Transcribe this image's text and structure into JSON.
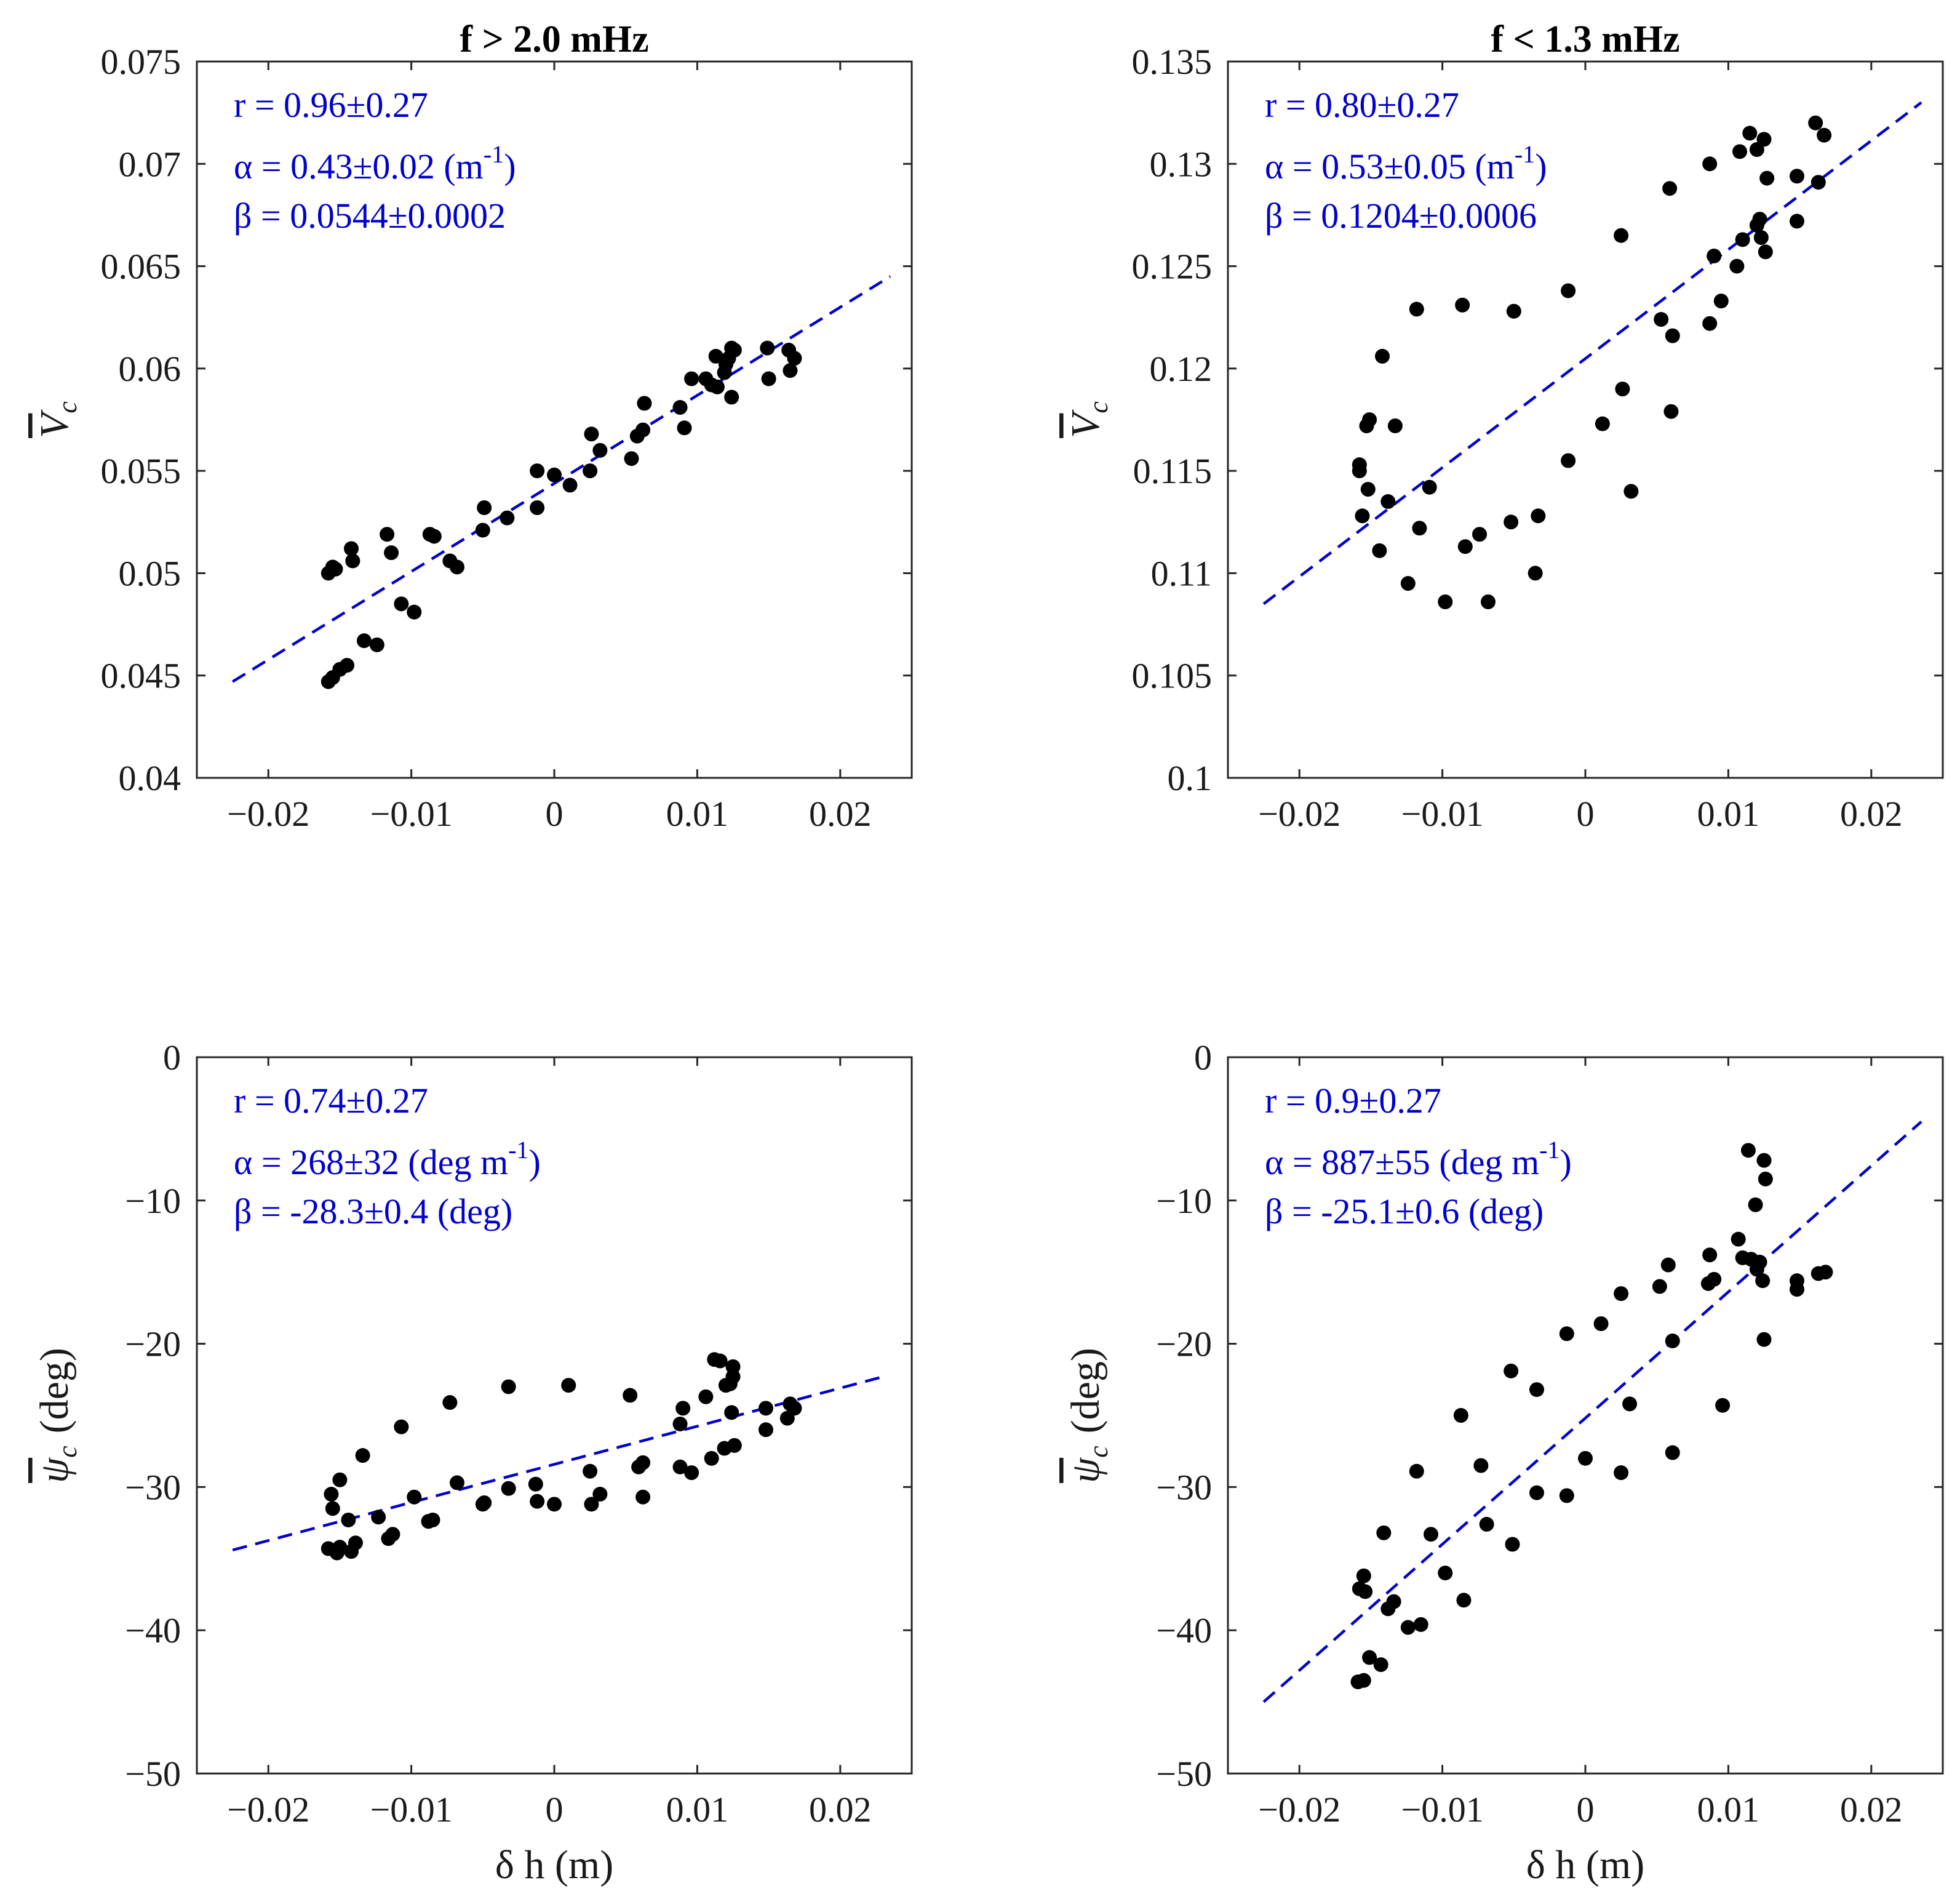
{
  "colors": {
    "points": "#000000",
    "fit": "#0000cd",
    "annotation": "#0000cd",
    "axes": "#262626"
  },
  "chart_data": [
    {
      "type": "scatter",
      "title": "f > 2.0 mHz",
      "xlabel": "",
      "ylabel_symbol": "V",
      "ylabel_sub": "c",
      "xlim": [
        -0.025,
        0.025
      ],
      "ylim": [
        0.04,
        0.075
      ],
      "xticks": [
        -0.02,
        -0.01,
        0,
        0.01,
        0.02
      ],
      "xtick_labels": [
        "−0.02",
        "−0.01",
        "0",
        "0.01",
        "0.02"
      ],
      "yticks": [
        0.04,
        0.045,
        0.05,
        0.055,
        0.06,
        0.065,
        0.07,
        0.075
      ],
      "ytick_labels": [
        "0.04",
        "0.045",
        "0.05",
        "0.055",
        "0.06",
        "0.065",
        "0.07",
        "0.075"
      ],
      "annotations": {
        "r": "r = 0.96±0.27",
        "alpha": "α = 0.43±0.02 (m",
        "alpha_sup": "-1",
        "alpha_end": ")",
        "beta": "β = 0.0544±0.0002"
      },
      "fit": {
        "x": [
          -0.0225,
          0.0235
        ],
        "y": [
          0.0447,
          0.0645
        ]
      },
      "points": [
        [
          -0.0158,
          0.0447
        ],
        [
          -0.0155,
          0.0449
        ],
        [
          -0.015,
          0.0453
        ],
        [
          -0.0145,
          0.0455
        ],
        [
          -0.0158,
          0.05
        ],
        [
          -0.0155,
          0.0503
        ],
        [
          -0.0153,
          0.0502
        ],
        [
          -0.0141,
          0.0506
        ],
        [
          -0.0142,
          0.0512
        ],
        [
          -0.0133,
          0.0467
        ],
        [
          -0.0124,
          0.0465
        ],
        [
          -0.0117,
          0.0519
        ],
        [
          -0.0114,
          0.051
        ],
        [
          -0.0107,
          0.0485
        ],
        [
          -0.0098,
          0.0481
        ],
        [
          -0.0087,
          0.0519
        ],
        [
          -0.0084,
          0.0518
        ],
        [
          -0.0073,
          0.0506
        ],
        [
          -0.0068,
          0.0503
        ],
        [
          -0.005,
          0.0521
        ],
        [
          -0.0049,
          0.0532
        ],
        [
          -0.0033,
          0.0527
        ],
        [
          -0.0012,
          0.0532
        ],
        [
          -0.0012,
          0.055
        ],
        [
          0.0,
          0.0548
        ],
        [
          0.0011,
          0.0543
        ],
        [
          0.0025,
          0.055
        ],
        [
          0.0026,
          0.0568
        ],
        [
          0.0032,
          0.056
        ],
        [
          0.0054,
          0.0556
        ],
        [
          0.0058,
          0.0567
        ],
        [
          0.0062,
          0.057
        ],
        [
          0.0063,
          0.0583
        ],
        [
          0.0088,
          0.0581
        ],
        [
          0.0091,
          0.0571
        ],
        [
          0.0096,
          0.0595
        ],
        [
          0.0106,
          0.0595
        ],
        [
          0.011,
          0.0592
        ],
        [
          0.0113,
          0.0606
        ],
        [
          0.0114,
          0.0591
        ],
        [
          0.0119,
          0.0598
        ],
        [
          0.012,
          0.0602
        ],
        [
          0.0122,
          0.0605
        ],
        [
          0.0124,
          0.061
        ],
        [
          0.0124,
          0.0586
        ],
        [
          0.0126,
          0.0609
        ],
        [
          0.0149,
          0.061
        ],
        [
          0.015,
          0.0595
        ],
        [
          0.0164,
          0.0609
        ],
        [
          0.0165,
          0.0599
        ],
        [
          0.0168,
          0.0605
        ]
      ]
    },
    {
      "type": "scatter",
      "title": "f < 1.3 mHz",
      "xlabel": "",
      "ylabel_symbol": "V",
      "ylabel_sub": "c",
      "xlim": [
        -0.025,
        0.025
      ],
      "ylim": [
        0.1,
        0.135
      ],
      "xticks": [
        -0.02,
        -0.01,
        0,
        0.01,
        0.02
      ],
      "xtick_labels": [
        "−0.02",
        "−0.01",
        "0",
        "0.01",
        "0.02"
      ],
      "yticks": [
        0.1,
        0.105,
        0.11,
        0.115,
        0.12,
        0.125,
        0.13,
        0.135
      ],
      "ytick_labels": [
        "0.1",
        "0.105",
        "0.11",
        "0.115",
        "0.12",
        "0.125",
        "0.13",
        "0.135"
      ],
      "annotations": {
        "r": "r = 0.80±0.27",
        "alpha": "α = 0.53±0.05 (m",
        "alpha_sup": "-1",
        "alpha_end": ")",
        "beta": "β = 0.1204±0.0006"
      },
      "fit": {
        "x": [
          -0.0225,
          0.0235
        ],
        "y": [
          0.1085,
          0.133
        ]
      },
      "points": [
        [
          -0.0158,
          0.1153
        ],
        [
          -0.0158,
          0.115
        ],
        [
          -0.0156,
          0.1128
        ],
        [
          -0.0153,
          0.1172
        ],
        [
          -0.0151,
          0.1175
        ],
        [
          -0.0152,
          0.1141
        ],
        [
          -0.0144,
          0.1111
        ],
        [
          -0.0142,
          0.1206
        ],
        [
          -0.0138,
          0.1135
        ],
        [
          -0.0133,
          0.1172
        ],
        [
          -0.0124,
          0.1095
        ],
        [
          -0.0118,
          0.1229
        ],
        [
          -0.0116,
          0.1122
        ],
        [
          -0.0109,
          0.1142
        ],
        [
          -0.0098,
          0.1086
        ],
        [
          -0.0086,
          0.1231
        ],
        [
          -0.0084,
          0.1113
        ],
        [
          -0.0074,
          0.1119
        ],
        [
          -0.0068,
          0.1086
        ],
        [
          -0.0052,
          0.1125
        ],
        [
          -0.005,
          0.1228
        ],
        [
          -0.0035,
          0.11
        ],
        [
          -0.0033,
          0.1128
        ],
        [
          -0.0012,
          0.1155
        ],
        [
          -0.0012,
          0.1238
        ],
        [
          0.0012,
          0.1173
        ],
        [
          0.0025,
          0.1265
        ],
        [
          0.0026,
          0.119
        ],
        [
          0.0032,
          0.114
        ],
        [
          0.0053,
          0.1224
        ],
        [
          0.0059,
          0.1288
        ],
        [
          0.006,
          0.1179
        ],
        [
          0.0061,
          0.1216
        ],
        [
          0.0087,
          0.1222
        ],
        [
          0.0087,
          0.13
        ],
        [
          0.009,
          0.1255
        ],
        [
          0.0095,
          0.1233
        ],
        [
          0.0106,
          0.125
        ],
        [
          0.0108,
          0.1306
        ],
        [
          0.011,
          0.1263
        ],
        [
          0.0115,
          0.1315
        ],
        [
          0.012,
          0.1307
        ],
        [
          0.012,
          0.127
        ],
        [
          0.0122,
          0.1273
        ],
        [
          0.0123,
          0.1264
        ],
        [
          0.0125,
          0.1312
        ],
        [
          0.0126,
          0.1257
        ],
        [
          0.0127,
          0.1293
        ],
        [
          0.0148,
          0.1294
        ],
        [
          0.0148,
          0.1272
        ],
        [
          0.0161,
          0.132
        ],
        [
          0.0163,
          0.1291
        ],
        [
          0.0167,
          0.1314
        ]
      ]
    },
    {
      "type": "scatter",
      "title": "",
      "xlabel": "δ h (m)",
      "ylabel_symbol": "ψ",
      "ylabel_sub": "c",
      "ylabel_unit": "(deg)",
      "xlim": [
        -0.025,
        0.025
      ],
      "ylim": [
        -50,
        0
      ],
      "xticks": [
        -0.02,
        -0.01,
        0,
        0.01,
        0.02
      ],
      "xtick_labels": [
        "−0.02",
        "−0.01",
        "0",
        "0.01",
        "0.02"
      ],
      "yticks": [
        -50,
        -40,
        -30,
        -20,
        -10,
        0
      ],
      "ytick_labels": [
        "−50",
        "−40",
        "−30",
        "−20",
        "−10",
        "0"
      ],
      "annotations": {
        "r": "r = 0.74±0.27",
        "alpha": "α = 268±32 (deg m",
        "alpha_sup": "-1",
        "alpha_end": ")",
        "beta": "β = -28.3±0.4 (deg)"
      },
      "fit": {
        "x": [
          -0.0225,
          0.023
        ],
        "y": [
          -34.4,
          -22.3
        ]
      },
      "points": [
        [
          -0.0158,
          -34.3
        ],
        [
          -0.0156,
          -30.5
        ],
        [
          -0.0155,
          -31.5
        ],
        [
          -0.0152,
          -34.6
        ],
        [
          -0.015,
          -34.2
        ],
        [
          -0.015,
          -29.5
        ],
        [
          -0.0144,
          -32.3
        ],
        [
          -0.0142,
          -34.5
        ],
        [
          -0.0139,
          -33.9
        ],
        [
          -0.0134,
          -27.8
        ],
        [
          -0.0123,
          -32.1
        ],
        [
          -0.0116,
          -33.6
        ],
        [
          -0.0113,
          -33.3
        ],
        [
          -0.0107,
          -25.8
        ],
        [
          -0.0098,
          -30.7
        ],
        [
          -0.0088,
          -32.4
        ],
        [
          -0.0085,
          -32.3
        ],
        [
          -0.0073,
          -24.1
        ],
        [
          -0.0068,
          -29.7
        ],
        [
          -0.005,
          -31.2
        ],
        [
          -0.0049,
          -31.1
        ],
        [
          -0.0032,
          -30.1
        ],
        [
          -0.0032,
          -23.0
        ],
        [
          -0.0013,
          -29.8
        ],
        [
          -0.0012,
          -31.0
        ],
        [
          0.0,
          -31.2
        ],
        [
          0.001,
          -22.9
        ],
        [
          0.0025,
          -28.9
        ],
        [
          0.0026,
          -31.2
        ],
        [
          0.0032,
          -30.5
        ],
        [
          0.0053,
          -23.6
        ],
        [
          0.0059,
          -28.6
        ],
        [
          0.0062,
          -28.3
        ],
        [
          0.0062,
          -30.7
        ],
        [
          0.0088,
          -28.6
        ],
        [
          0.0088,
          -25.6
        ],
        [
          0.009,
          -24.5
        ],
        [
          0.0096,
          -29.0
        ],
        [
          0.0106,
          -23.7
        ],
        [
          0.011,
          -28.0
        ],
        [
          0.0112,
          -21.1
        ],
        [
          0.0116,
          -21.2
        ],
        [
          0.0119,
          -27.3
        ],
        [
          0.012,
          -22.9
        ],
        [
          0.0123,
          -22.8
        ],
        [
          0.0124,
          -24.8
        ],
        [
          0.0125,
          -21.6
        ],
        [
          0.0125,
          -22.3
        ],
        [
          0.0126,
          -27.1
        ],
        [
          0.0148,
          -24.5
        ],
        [
          0.0148,
          -26.0
        ],
        [
          0.0163,
          -25.2
        ],
        [
          0.0165,
          -24.2
        ],
        [
          0.0168,
          -24.5
        ]
      ]
    },
    {
      "type": "scatter",
      "title": "",
      "xlabel": "δ h (m)",
      "ylabel_symbol": "ψ",
      "ylabel_sub": "c",
      "ylabel_unit": "(deg)",
      "xlim": [
        -0.025,
        0.025
      ],
      "ylim": [
        -50,
        0
      ],
      "xticks": [
        -0.02,
        -0.01,
        0,
        0.01,
        0.02
      ],
      "xtick_labels": [
        "−0.02",
        "−0.01",
        "0",
        "0.01",
        "0.02"
      ],
      "yticks": [
        -50,
        -40,
        -30,
        -20,
        -10,
        0
      ],
      "ytick_labels": [
        "−50",
        "−40",
        "−30",
        "−20",
        "−10",
        "0"
      ],
      "annotations": {
        "r": "r = 0.9±0.27",
        "alpha": "α = 887±55 (deg m",
        "alpha_sup": "-1",
        "alpha_end": ")",
        "beta": "β = -25.1±0.6 (deg)"
      },
      "fit": {
        "x": [
          -0.0225,
          0.0235
        ],
        "y": [
          -45.0,
          -4.5
        ]
      },
      "points": [
        [
          -0.0159,
          -43.6
        ],
        [
          -0.0158,
          -37.1
        ],
        [
          -0.0155,
          -36.2
        ],
        [
          -0.0154,
          -37.3
        ],
        [
          -0.0155,
          -43.5
        ],
        [
          -0.0151,
          -41.9
        ],
        [
          -0.0143,
          -42.4
        ],
        [
          -0.0141,
          -33.2
        ],
        [
          -0.0138,
          -38.5
        ],
        [
          -0.0134,
          -38.0
        ],
        [
          -0.0124,
          -39.8
        ],
        [
          -0.0118,
          -28.9
        ],
        [
          -0.0115,
          -39.6
        ],
        [
          -0.0108,
          -33.3
        ],
        [
          -0.0098,
          -36.0
        ],
        [
          -0.0087,
          -25.0
        ],
        [
          -0.0085,
          -37.9
        ],
        [
          -0.0073,
          -28.5
        ],
        [
          -0.0069,
          -32.6
        ],
        [
          -0.0051,
          -34.0
        ],
        [
          -0.0052,
          -21.9
        ],
        [
          -0.0034,
          -23.2
        ],
        [
          -0.0034,
          -30.4
        ],
        [
          -0.0013,
          -30.6
        ],
        [
          -0.0013,
          -19.3
        ],
        [
          0.0,
          -28.0
        ],
        [
          0.0011,
          -18.6
        ],
        [
          0.0025,
          -29.0
        ],
        [
          0.0025,
          -16.5
        ],
        [
          0.0031,
          -24.2
        ],
        [
          0.0052,
          -16.0
        ],
        [
          0.0058,
          -14.5
        ],
        [
          0.0061,
          -19.8
        ],
        [
          0.0061,
          -27.6
        ],
        [
          0.0086,
          -15.8
        ],
        [
          0.0087,
          -13.8
        ],
        [
          0.009,
          -15.5
        ],
        [
          0.0096,
          -24.3
        ],
        [
          0.0107,
          -12.7
        ],
        [
          0.011,
          -14.0
        ],
        [
          0.0114,
          -6.5
        ],
        [
          0.0116,
          -14.1
        ],
        [
          0.0119,
          -10.3
        ],
        [
          0.012,
          -14.8
        ],
        [
          0.0122,
          -14.3
        ],
        [
          0.0124,
          -15.6
        ],
        [
          0.0125,
          -7.2
        ],
        [
          0.0125,
          -19.7
        ],
        [
          0.0126,
          -8.5
        ],
        [
          0.0148,
          -15.6
        ],
        [
          0.0148,
          -16.2
        ],
        [
          0.0163,
          -15.1
        ],
        [
          0.0168,
          -15.0
        ]
      ]
    }
  ]
}
